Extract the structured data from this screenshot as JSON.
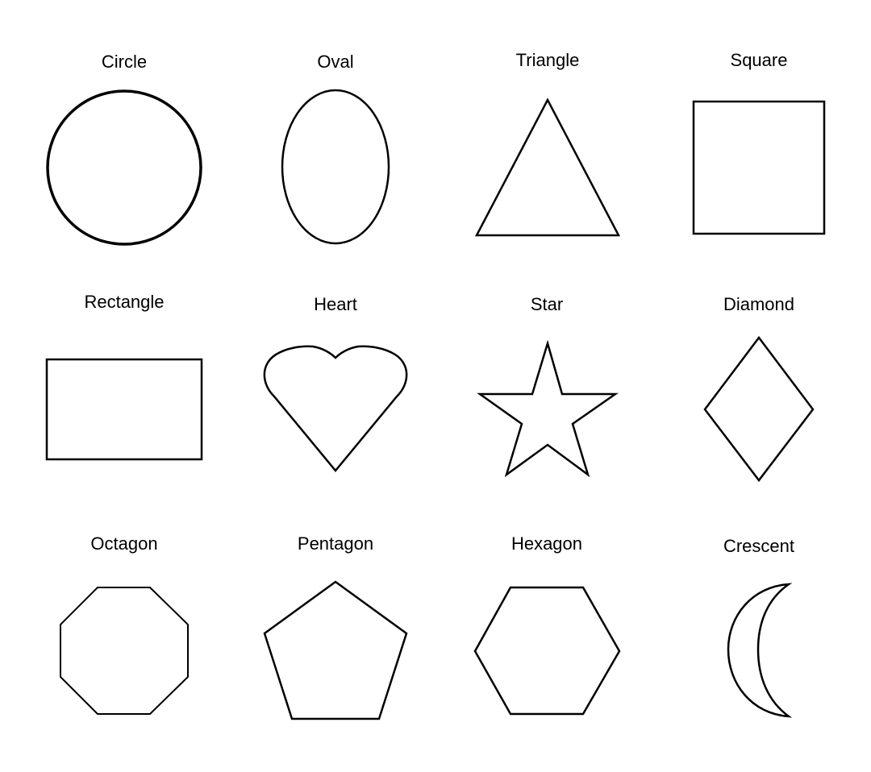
{
  "shapes": {
    "circle": {
      "label": "Circle",
      "icon": "circle-shape"
    },
    "oval": {
      "label": "Oval",
      "icon": "oval-shape"
    },
    "triangle": {
      "label": "Triangle",
      "icon": "triangle-shape"
    },
    "square": {
      "label": "Square",
      "icon": "square-shape"
    },
    "rectangle": {
      "label": "Rectangle",
      "icon": "rectangle-shape"
    },
    "heart": {
      "label": "Heart",
      "icon": "heart-shape"
    },
    "star": {
      "label": "Star",
      "icon": "star-shape"
    },
    "diamond": {
      "label": "Diamond",
      "icon": "diamond-shape"
    },
    "octagon": {
      "label": "Octagon",
      "icon": "octagon-shape"
    },
    "pentagon": {
      "label": "Pentagon",
      "icon": "pentagon-shape"
    },
    "hexagon": {
      "label": "Hexagon",
      "icon": "hexagon-shape"
    },
    "crescent": {
      "label": "Crescent",
      "icon": "crescent-shape"
    }
  },
  "colors": {
    "background": "#ffffff",
    "stroke": "#000000",
    "text": "#000000"
  }
}
